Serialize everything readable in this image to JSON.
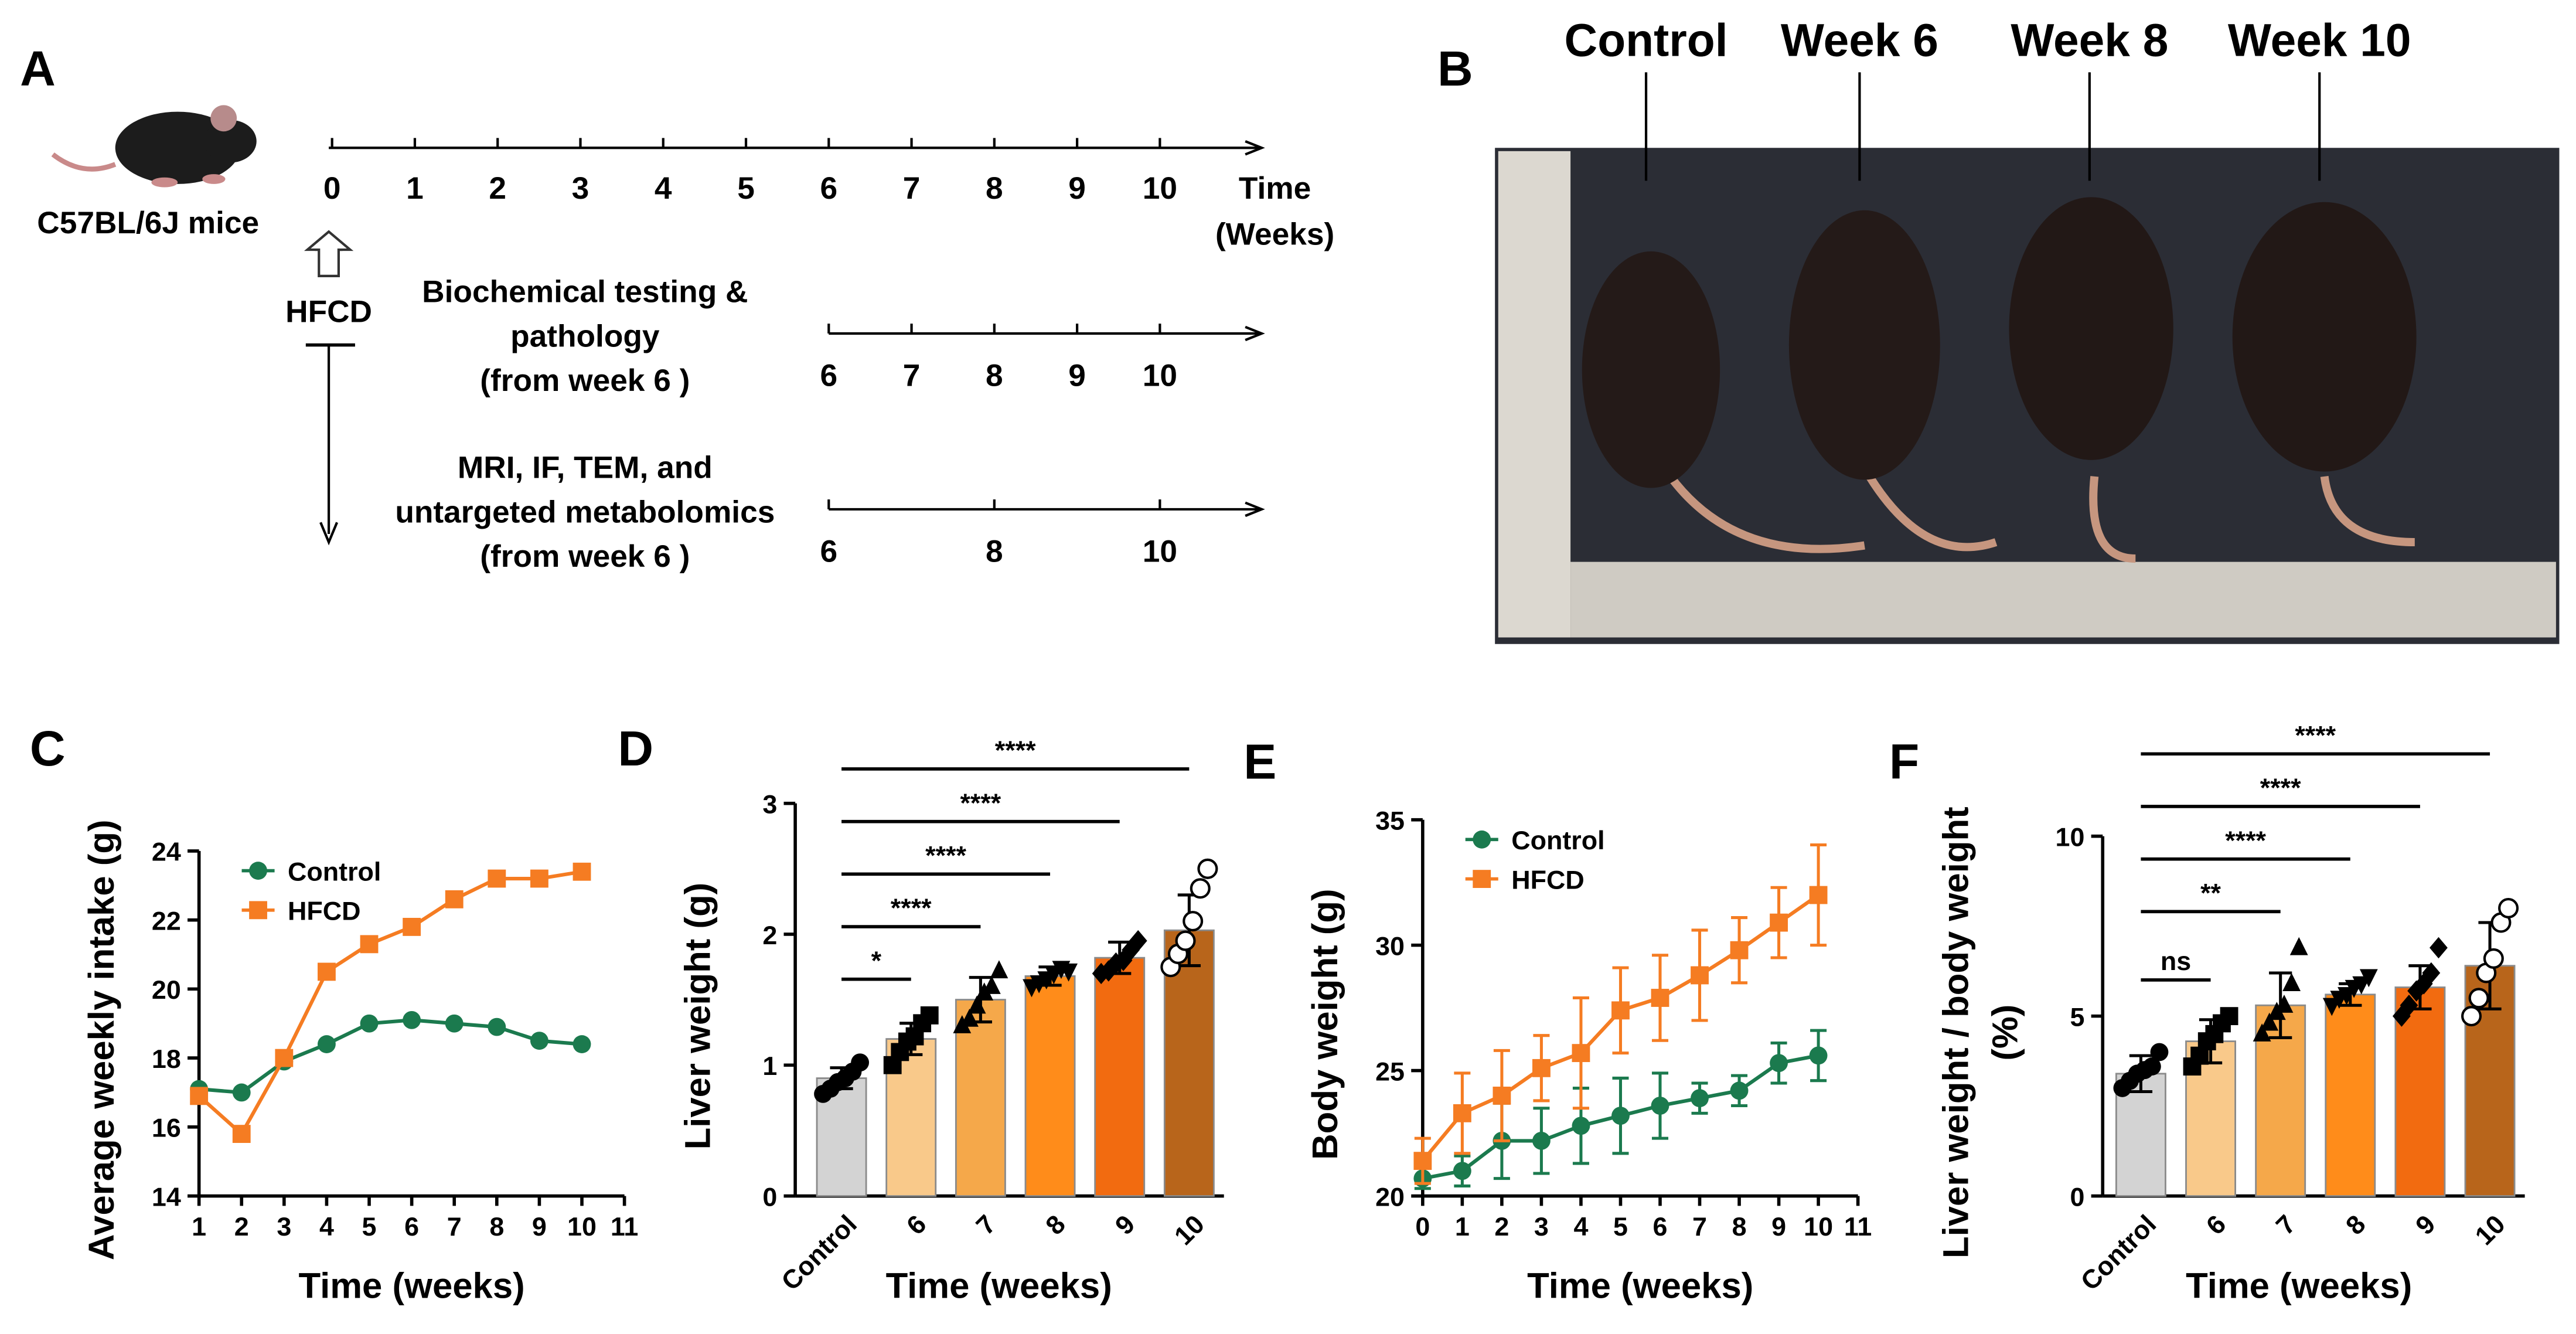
{
  "panel_labels": [
    "A",
    "B",
    "C",
    "D",
    "E",
    "F"
  ],
  "timeline": {
    "subject": "C57BL/6J mice",
    "ticks": [
      "0",
      "1",
      "2",
      "3",
      "4",
      "5",
      "6",
      "7",
      "8",
      "9",
      "10"
    ],
    "axis_label": [
      "Time",
      "(Weeks)"
    ],
    "diet": "HFCD",
    "tracks": [
      {
        "label": [
          "Biochemical testing &",
          "pathology",
          "(from week 6 )"
        ],
        "ticks": [
          "6",
          "7",
          "8",
          "9",
          "10"
        ]
      },
      {
        "label": [
          "MRI, IF, TEM, and",
          "untargeted metabolomics",
          "(from week 6 )"
        ],
        "ticks": [
          "6",
          "8",
          "10"
        ]
      }
    ]
  },
  "photo": {
    "labels": [
      "Control",
      "Week 6",
      "Week 8",
      "Week 10"
    ]
  },
  "chart_data": [
    {
      "type": "line",
      "x": [
        1,
        2,
        3,
        4,
        5,
        6,
        7,
        8,
        9,
        10
      ],
      "series": [
        {
          "name": "Control",
          "color": "#1b7a4e",
          "marker": "circle",
          "values": [
            17.1,
            17.0,
            17.9,
            18.4,
            19.0,
            19.1,
            19.0,
            18.9,
            18.5,
            18.4
          ]
        },
        {
          "name": "HFCD",
          "color": "#f57c22",
          "marker": "square",
          "values": [
            16.9,
            15.8,
            18.0,
            20.5,
            21.3,
            21.8,
            22.6,
            23.2,
            23.2,
            23.4
          ]
        }
      ],
      "xlim": [
        1,
        11
      ],
      "xticks": [
        1,
        2,
        3,
        4,
        5,
        6,
        7,
        8,
        9,
        10,
        11
      ],
      "ylim": [
        14,
        24
      ],
      "yticks": [
        14,
        16,
        18,
        20,
        22,
        24
      ],
      "xlabel": "Time (weeks)",
      "ylabel": "Average weekly intake (g)",
      "legend": "upper left"
    },
    {
      "type": "bar",
      "categories": [
        "Control",
        "6",
        "7",
        "8",
        "9",
        "10"
      ],
      "values": [
        0.9,
        1.2,
        1.5,
        1.68,
        1.82,
        2.03
      ],
      "errors": [
        0.08,
        0.12,
        0.17,
        0.07,
        0.12,
        0.27
      ],
      "colors": [
        "#d3d3d3",
        "#f9c98a",
        "#f5a84a",
        "#ff8c1a",
        "#f26b10",
        "#b8651b"
      ],
      "points": [
        [
          0.78,
          0.82,
          0.87,
          0.9,
          0.95,
          1.02
        ],
        [
          1.0,
          1.1,
          1.18,
          1.22,
          1.32,
          1.38
        ],
        [
          1.3,
          1.35,
          1.45,
          1.55,
          1.6,
          1.72
        ],
        [
          1.6,
          1.63,
          1.66,
          1.7,
          1.74,
          1.72
        ],
        [
          1.7,
          1.72,
          1.78,
          1.8,
          1.88,
          1.95
        ],
        [
          1.75,
          1.85,
          1.95,
          2.1,
          2.35,
          2.5
        ]
      ],
      "markers": [
        "circle",
        "square",
        "triangle",
        "triangle-down",
        "diamond",
        "circle-open"
      ],
      "significance": [
        "*",
        "****",
        "****",
        "****",
        "****"
      ],
      "ylim": [
        0,
        3
      ],
      "yticks": [
        0,
        1,
        2,
        3
      ],
      "xlabel": "Time (weeks)",
      "ylabel": "Liver weight (g)"
    },
    {
      "type": "line",
      "x": [
        0,
        1,
        2,
        3,
        4,
        5,
        6,
        7,
        8,
        9,
        10
      ],
      "series": [
        {
          "name": "Control",
          "color": "#1b7a4e",
          "marker": "circle",
          "values": [
            20.7,
            21.0,
            22.2,
            22.2,
            22.8,
            23.2,
            23.6,
            23.9,
            24.2,
            25.3,
            25.6
          ],
          "errors": [
            0.4,
            0.6,
            1.5,
            1.3,
            1.5,
            1.5,
            1.3,
            0.6,
            0.6,
            0.8,
            1.0
          ]
        },
        {
          "name": "HFCD",
          "color": "#f57c22",
          "marker": "square",
          "values": [
            21.4,
            23.3,
            24.0,
            25.1,
            25.7,
            27.4,
            27.9,
            28.8,
            29.8,
            30.9,
            32.0
          ],
          "errors": [
            0.9,
            1.6,
            1.8,
            1.3,
            2.2,
            1.7,
            1.7,
            1.8,
            1.3,
            1.4,
            2.0
          ]
        }
      ],
      "xlim": [
        0,
        11
      ],
      "xticks": [
        0,
        1,
        2,
        3,
        4,
        5,
        6,
        7,
        8,
        9,
        10,
        11
      ],
      "ylim": [
        20,
        35
      ],
      "yticks": [
        20,
        25,
        30,
        35
      ],
      "xlabel": "Time (weeks)",
      "ylabel": "Body weight (g)",
      "legend": "upper left"
    },
    {
      "type": "bar",
      "categories": [
        "Control",
        "6",
        "7",
        "8",
        "9",
        "10"
      ],
      "values": [
        3.4,
        4.3,
        5.3,
        5.6,
        5.8,
        6.4
      ],
      "errors": [
        0.5,
        0.6,
        0.9,
        0.3,
        0.6,
        1.2
      ],
      "colors": [
        "#d3d3d3",
        "#f9c98a",
        "#f5a84a",
        "#ff8c1a",
        "#f26b10",
        "#b8651b"
      ],
      "points": [
        [
          3.0,
          3.2,
          3.4,
          3.5,
          3.6,
          4.0
        ],
        [
          3.6,
          3.9,
          4.3,
          4.5,
          4.8,
          5.0
        ],
        [
          4.5,
          4.8,
          5.1,
          5.3,
          5.9,
          6.9
        ],
        [
          5.3,
          5.5,
          5.6,
          5.8,
          5.9,
          6.1
        ],
        [
          5.0,
          5.3,
          5.7,
          5.9,
          6.2,
          6.9
        ],
        [
          5.0,
          5.5,
          6.2,
          6.6,
          7.6,
          8.0
        ]
      ],
      "markers": [
        "circle",
        "square",
        "triangle",
        "triangle-down",
        "diamond",
        "circle-open"
      ],
      "significance": [
        "ns",
        "**",
        "****",
        "****",
        "****"
      ],
      "ylim": [
        0,
        10
      ],
      "yticks": [
        0,
        5,
        10
      ],
      "xlabel": "Time (weeks)",
      "ylabel": [
        "Liver weight / body weight",
        "(%)"
      ]
    }
  ]
}
